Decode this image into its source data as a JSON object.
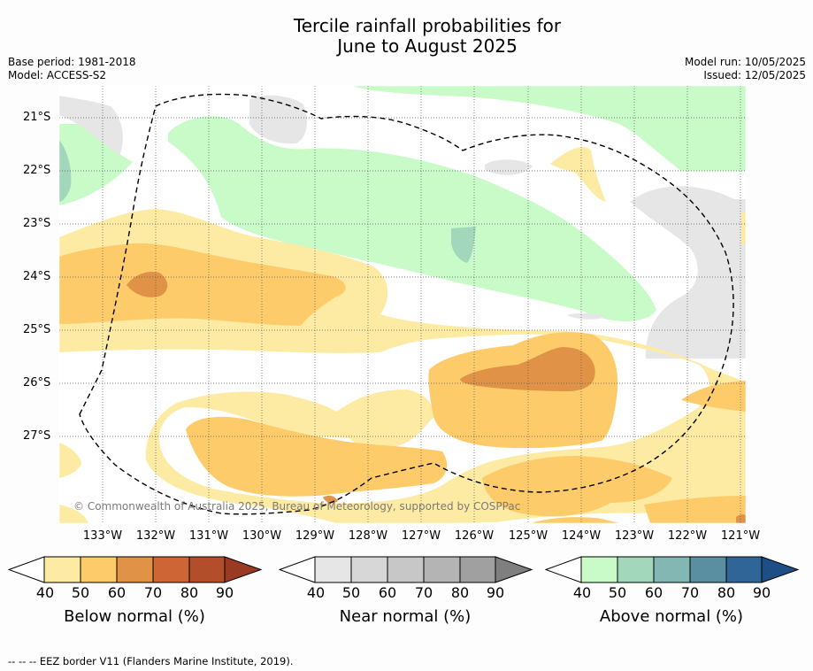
{
  "title": {
    "line1": "Tercile rainfall probabilities for",
    "line2": "June to August 2025"
  },
  "meta_left": {
    "base_period": "Base period: 1981-2018",
    "model": "Model: ACCESS-S2"
  },
  "meta_right": {
    "model_run": "Model run: 10/05/2025",
    "issued": "Issued: 12/05/2025"
  },
  "axes": {
    "lat_labels": [
      "21°S",
      "22°S",
      "23°S",
      "24°S",
      "25°S",
      "26°S",
      "27°S"
    ],
    "lon_labels": [
      "133°W",
      "132°W",
      "131°W",
      "130°W",
      "129°W",
      "128°W",
      "127°W",
      "126°W",
      "125°W",
      "124°W",
      "123°W",
      "122°W",
      "121°W"
    ]
  },
  "copyright": "© Commonwealth of Australia 2025, Bureau of Meteorology, supported by COSPPac",
  "colorbars": [
    {
      "label": "Below normal (%)",
      "ticks": [
        "40",
        "50",
        "60",
        "70",
        "80",
        "90"
      ],
      "colors": [
        "#fdeaa3",
        "#fdcb69",
        "#e09346",
        "#cd6534",
        "#b34e2a",
        "#9b3a22"
      ]
    },
    {
      "label": "Near normal (%)",
      "ticks": [
        "40",
        "50",
        "60",
        "70",
        "80",
        "90"
      ],
      "colors": [
        "#e6e6e6",
        "#d7d7d7",
        "#c7c7c7",
        "#b4b4b4",
        "#a0a0a0",
        "#7f7f7f"
      ]
    },
    {
      "label": "Above normal (%)",
      "ticks": [
        "40",
        "50",
        "60",
        "70",
        "80",
        "90"
      ],
      "colors": [
        "#c8fbc8",
        "#a2d7bb",
        "#83b7b3",
        "#598fa0",
        "#2f6697",
        "#1d4f86"
      ]
    }
  ],
  "footnote": "--  --  -- EEZ border V11 (Flanders Marine Institute, 2019)."
}
